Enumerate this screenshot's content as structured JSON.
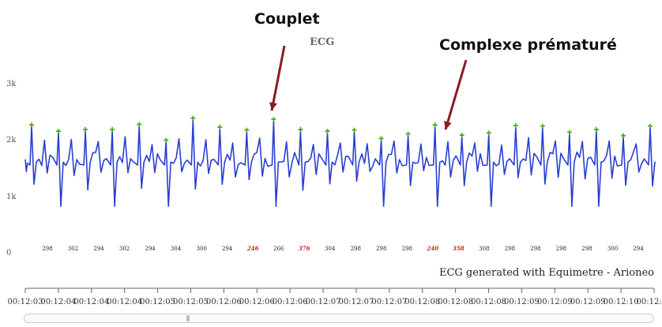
{
  "annotations": {
    "couplet": "Couplet",
    "premature": "Complexe prématuré"
  },
  "chart_data": {
    "type": "line",
    "title": "ECG",
    "credit": "ECG generated with Equimetre - Arioneo",
    "y_ticks": [
      "3k",
      "2k",
      "1k",
      "0"
    ],
    "ylim": [
      0,
      3000
    ],
    "x_ticks": [
      "00:12:03",
      "00:12:04",
      "00:12:04",
      "00:12:04",
      "00:12:05",
      "00:12:05",
      "00:12:06",
      "00:12:06",
      "00:12:06",
      "00:12:07",
      "00:12:07",
      "00:12:07",
      "00:12:08",
      "00:12:08",
      "00:12:08",
      "00:12:09",
      "00:12:09",
      "00:12:09",
      "00:12:10",
      "00:12:10"
    ],
    "r_peak_values": [
      2230,
      2120,
      2150,
      2150,
      2240,
      1960,
      2350,
      2190,
      2140,
      2330,
      2150,
      2120,
      2140,
      1990,
      2070,
      2230,
      2050,
      2090,
      2220,
      2210,
      2100,
      2150,
      2040,
      2210
    ],
    "rr_intervals": [
      {
        "value": "298",
        "highlight": false
      },
      {
        "value": "302",
        "highlight": false
      },
      {
        "value": "294",
        "highlight": false
      },
      {
        "value": "302",
        "highlight": false
      },
      {
        "value": "294",
        "highlight": false
      },
      {
        "value": "304",
        "highlight": false
      },
      {
        "value": "300",
        "highlight": false
      },
      {
        "value": "294",
        "highlight": false
      },
      {
        "value": "246",
        "highlight": true
      },
      {
        "value": "266",
        "highlight": false
      },
      {
        "value": "376",
        "highlight": true
      },
      {
        "value": "304",
        "highlight": false
      },
      {
        "value": "298",
        "highlight": false
      },
      {
        "value": "298",
        "highlight": false
      },
      {
        "value": "298",
        "highlight": false
      },
      {
        "value": "240",
        "highlight": true
      },
      {
        "value": "358",
        "highlight": true
      },
      {
        "value": "308",
        "highlight": false
      },
      {
        "value": "298",
        "highlight": false
      },
      {
        "value": "298",
        "highlight": false
      },
      {
        "value": "298",
        "highlight": false
      },
      {
        "value": "298",
        "highlight": false
      },
      {
        "value": "300",
        "highlight": false
      },
      {
        "value": "294",
        "highlight": false
      }
    ],
    "colors": {
      "line": "#2a3fd1",
      "peak_marker": "#4caf22",
      "highlight_text": "#d21f1f",
      "arrow": "#8b1a24"
    },
    "grid": false
  }
}
